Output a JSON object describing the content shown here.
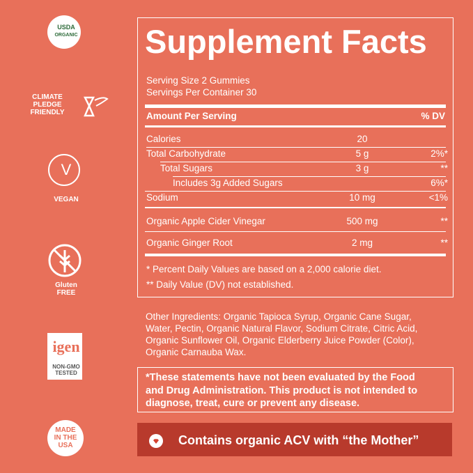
{
  "badges": {
    "usda": [
      "USDA",
      "ORGANIC"
    ],
    "climate": [
      "CLIMATE",
      "PLEDGE",
      "FRIENDLY"
    ],
    "vegan_icon": "V",
    "vegan": "VEGAN",
    "gluten": [
      "Gluten",
      "FREE"
    ],
    "nongmo_logo": "igen",
    "nongmo": [
      "NON-GMO",
      "TESTED"
    ],
    "usa": [
      "MADE",
      "IN THE",
      "USA"
    ]
  },
  "facts": {
    "title": "Supplement Facts",
    "serving_size": "Serving Size 2 Gummies",
    "servings_per_container": "Servings Per Container 30",
    "header": {
      "amount": "Amount Per Serving",
      "dv": "% DV"
    },
    "rows": [
      {
        "name": "Calories",
        "amount": "20"
      },
      {
        "name": "Total Carbohydrate",
        "amount": "5 g",
        "dv": "2%*"
      },
      {
        "name": "Total Sugars",
        "amount": "3 g",
        "dv": "**"
      },
      {
        "name": "Includes 3g Added Sugars",
        "dv": "6%*"
      },
      {
        "name": "Sodium",
        "amount": "10 mg",
        "dv": "<1%"
      },
      {
        "name": "Organic Apple Cider Vinegar",
        "amount": "500 mg",
        "dv": "**"
      },
      {
        "name": "Organic Ginger Root",
        "amount": "2 mg",
        "dv": "**"
      }
    ],
    "footnotes": [
      "*  Percent Daily Values are based on a 2,000 calorie diet.",
      "** Daily Value (DV) not established."
    ]
  },
  "other_ingredients": [
    "Other Ingredients: Organic Tapioca Syrup, Organic Cane Sugar,",
    "Water, Pectin, Organic Natural Flavor, Sodium Citrate, Citric Acid,",
    "Organic Sunflower Oil, Organic Elderberry Juice Powder (Color),",
    "Organic Carnauba Wax."
  ],
  "disclaimer": [
    "*These statements have not been evaluated by the Food",
    "and Drug Administration. This product is not intended to",
    "diagnose, treat, cure or prevent any disease."
  ],
  "banner": "Contains organic ACV with “the Mother”"
}
